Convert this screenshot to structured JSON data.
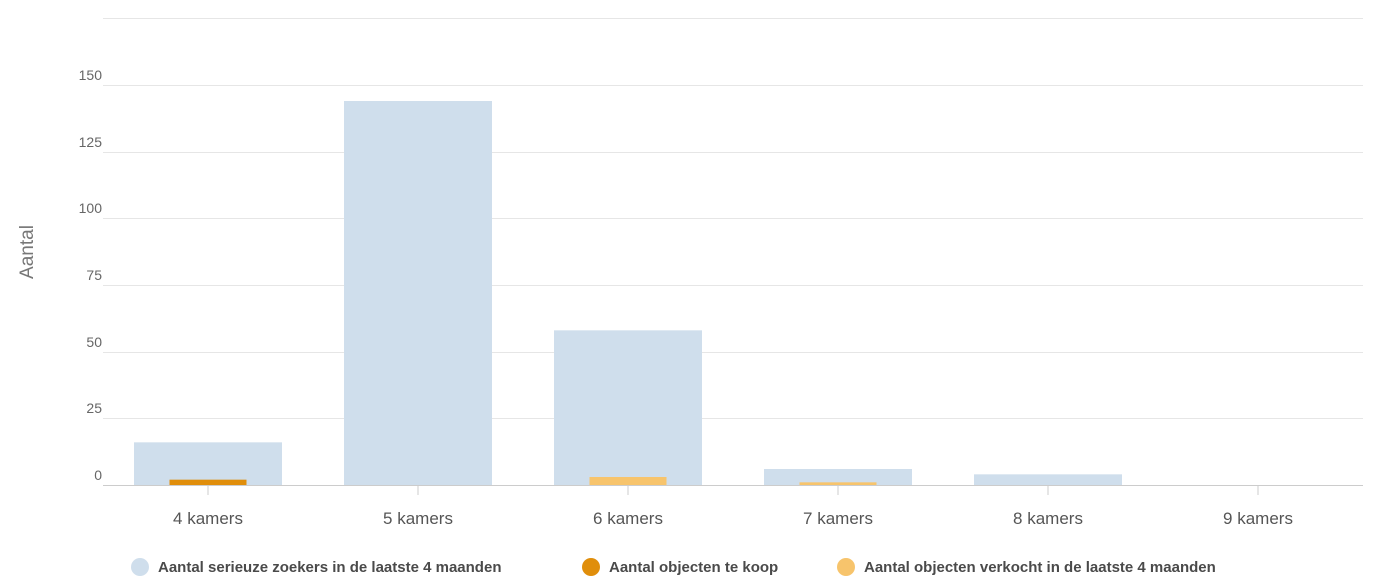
{
  "chart_data": {
    "type": "bar",
    "categories": [
      "4 kamers",
      "5 kamers",
      "6 kamers",
      "7 kamers",
      "8 kamers",
      "9 kamers"
    ],
    "series": [
      {
        "name": "Aantal serieuze zoekers in de laatste 4 maanden",
        "values": [
          16,
          144,
          58,
          6,
          4,
          0
        ],
        "color": "#cfdeec"
      },
      {
        "name": "Aantal objecten te koop",
        "values": [
          2,
          0,
          0,
          0,
          0,
          0
        ],
        "color": "#e08e0b"
      },
      {
        "name": "Aantal objecten verkocht in de laatste 4 maanden",
        "values": [
          0,
          0,
          3,
          1,
          0,
          0
        ],
        "color": "#f7c46c"
      }
    ],
    "ylabel": "Aantal",
    "ylim": [
      0,
      175
    ],
    "yticks": [
      0,
      25,
      50,
      75,
      100,
      125,
      150
    ],
    "grid": true,
    "legend_position": "bottom"
  }
}
